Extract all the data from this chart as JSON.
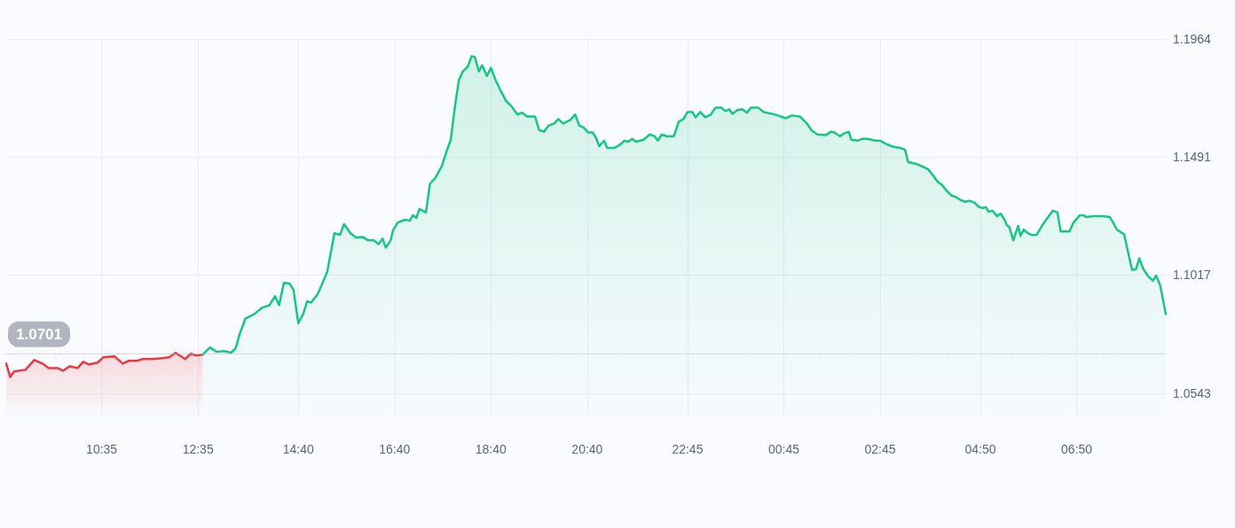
{
  "chart_data": {
    "type": "area",
    "xlim": [
      "--01-01T08:36",
      "--01-02T08:41"
    ],
    "ylim": [
      1.045,
      1.1964
    ],
    "xticks": [
      {
        "value": "--01-01T10:35",
        "label": "10:35"
      },
      {
        "value": "--01-01T12:35",
        "label": "12:35"
      },
      {
        "value": "--01-01T14:40",
        "label": "14:40"
      },
      {
        "value": "--01-01T16:40",
        "label": "16:40"
      },
      {
        "value": "--01-01T18:40",
        "label": "18:40"
      },
      {
        "value": "--01-01T20:40",
        "label": "20:40"
      },
      {
        "value": "--01-01T22:45",
        "label": "22:45"
      },
      {
        "value": "--01-02T00:45",
        "label": "00:45"
      },
      {
        "value": "--01-02T02:45",
        "label": "02:45"
      },
      {
        "value": "--01-02T04:50",
        "label": "04:50"
      },
      {
        "value": "--01-02T06:50",
        "label": "06:50"
      }
    ],
    "yticks": [
      1.0543,
      1.1017,
      1.1491,
      1.1964
    ],
    "grid": true,
    "marker": "none",
    "line_style": "solid",
    "ref_lines": [
      {
        "axis": "y",
        "value": 1.0701,
        "label": "1.0701",
        "color": "#b8bcc6",
        "line_style": "dotted"
      }
    ],
    "series": [
      {
        "color": "#ea3943",
        "x": [
          "--01-01T08:36",
          "--01-01T08:41",
          "--01-01T08:46",
          "--01-01T09:00",
          "--01-01T09:11",
          "--01-01T09:21",
          "--01-01T09:29",
          "--01-01T09:40",
          "--01-01T09:47",
          "--01-01T09:55",
          "--01-01T10:05",
          "--01-01T10:12",
          "--01-01T10:19",
          "--01-01T10:30",
          "--01-01T10:37",
          "--01-01T10:51",
          "--01-01T11:01",
          "--01-01T11:09",
          "--01-01T11:19",
          "--01-01T11:26",
          "--01-01T11:38",
          "--01-01T11:51",
          "--01-01T11:59",
          "--01-01T12:07",
          "--01-01T12:19",
          "--01-01T12:26",
          "--01-01T12:33",
          "--01-01T12:41"
        ],
        "values": [
          1.0662,
          1.0608,
          1.063,
          1.0637,
          1.0676,
          1.0662,
          1.0644,
          1.0644,
          1.0633,
          1.0651,
          1.0644,
          1.0669,
          1.0658,
          1.0666,
          1.0687,
          1.0691,
          1.0662,
          1.0673,
          1.0673,
          1.068,
          1.068,
          1.0684,
          1.0687,
          1.0705,
          1.068,
          1.0702,
          1.0694,
          1.0698
        ]
      },
      {
        "color": "#16c784",
        "x": [
          "--01-01T12:41",
          "--01-01T12:50",
          "--01-01T12:58",
          "--01-01T13:08",
          "--01-01T13:16",
          "--01-01T13:22",
          "--01-01T13:27",
          "--01-01T13:34",
          "--01-01T13:45",
          "--01-01T13:55",
          "--01-01T14:04",
          "--01-01T14:11",
          "--01-01T14:16",
          "--01-01T14:22",
          "--01-01T14:29",
          "--01-01T14:34",
          "--01-01T14:40",
          "--01-01T14:46",
          "--01-01T14:51",
          "--01-01T14:56",
          "--01-01T15:04",
          "--01-01T15:09",
          "--01-01T15:16",
          "--01-01T15:25",
          "--01-01T15:32",
          "--01-01T15:37",
          "--01-01T15:45",
          "--01-01T15:52",
          "--01-01T16:00",
          "--01-01T16:07",
          "--01-01T16:14",
          "--01-01T16:20",
          "--01-01T16:25",
          "--01-01T16:29",
          "--01-01T16:35",
          "--01-01T16:38",
          "--01-01T16:44",
          "--01-01T16:53",
          "--01-01T16:59",
          "--01-01T17:03",
          "--01-01T17:07",
          "--01-01T17:11",
          "--01-01T17:19",
          "--01-01T17:24",
          "--01-01T17:31",
          "--01-01T17:39",
          "--01-01T17:45",
          "--01-01T17:50",
          "--01-01T17:55",
          "--01-01T18:00",
          "--01-01T18:05",
          "--01-01T18:11",
          "--01-01T18:16",
          "--01-01T18:20",
          "--01-01T18:25",
          "--01-01T18:29",
          "--01-01T18:35",
          "--01-01T18:40",
          "--01-01T18:46",
          "--01-01T18:53",
          "--01-01T18:59",
          "--01-01T19:05",
          "--01-01T19:13",
          "--01-01T19:19",
          "--01-01T19:25",
          "--01-01T19:35",
          "--01-01T19:40",
          "--01-01T19:46",
          "--01-01T19:52",
          "--01-01T19:59",
          "--01-01T20:04",
          "--01-01T20:10",
          "--01-01T20:19",
          "--01-01T20:25",
          "--01-01T20:30",
          "--01-01T20:36",
          "--01-01T20:41",
          "--01-01T20:47",
          "--01-01T20:51",
          "--01-01T20:55",
          "--01-01T21:01",
          "--01-01T21:05",
          "--01-01T21:14",
          "--01-01T21:18",
          "--01-01T21:23",
          "--01-01T21:26",
          "--01-01T21:31",
          "--01-01T21:36",
          "--01-01T21:41",
          "--01-01T21:50",
          "--01-01T21:58",
          "--01-01T22:04",
          "--01-01T22:08",
          "--01-01T22:13",
          "--01-01T22:19",
          "--01-01T22:28",
          "--01-01T22:34",
          "--01-01T22:40",
          "--01-01T22:45",
          "--01-01T22:51",
          "--01-01T22:55",
          "--01-01T23:01",
          "--01-01T23:07",
          "--01-01T23:14",
          "--01-01T23:20",
          "--01-01T23:27",
          "--01-01T23:32",
          "--01-01T23:37",
          "--01-01T23:41",
          "--01-01T23:47",
          "--01-01T23:53",
          "--01-01T23:59",
          "--01-02T00:04",
          "--01-02T00:13",
          "--01-02T00:20",
          "--01-02T00:30",
          "--01-02T00:38",
          "--01-02T00:47",
          "--01-02T00:55",
          "--01-02T01:05",
          "--01-02T01:13",
          "--01-02T01:20",
          "--01-02T01:27",
          "--01-02T01:37",
          "--01-02T01:44",
          "--01-02T01:48",
          "--01-02T01:55",
          "--01-02T02:00",
          "--01-02T02:06",
          "--01-02T02:09",
          "--01-02T02:17",
          "--01-02T02:22",
          "--01-02T02:29",
          "--01-02T02:39",
          "--01-02T02:45",
          "--01-02T02:53",
          "--01-02T03:02",
          "--01-02T03:10",
          "--01-02T03:16",
          "--01-02T03:20",
          "--01-02T03:31",
          "--01-02T03:38",
          "--01-02T03:45",
          "--01-02T03:52",
          "--01-02T03:57",
          "--01-02T04:02",
          "--01-02T04:07",
          "--01-02T04:14",
          "--01-02T04:20",
          "--01-02T04:25",
          "--01-02T04:31",
          "--01-02T04:36",
          "--01-02T04:43",
          "--01-02T04:47",
          "--01-02T04:52",
          "--01-02T04:57",
          "--01-02T05:00",
          "--01-02T05:05",
          "--01-02T05:11",
          "--01-02T05:15",
          "--01-02T05:20",
          "--01-02T05:23",
          "--01-02T05:26",
          "--01-02T05:31",
          "--01-02T05:34",
          "--01-02T05:37",
          "--01-02T05:40",
          "--01-02T05:44",
          "--01-02T05:49",
          "--01-02T05:54",
          "--01-02T06:00",
          "--01-02T06:08",
          "--01-02T06:16",
          "--01-02T06:20",
          "--01-02T06:26",
          "--01-02T06:30",
          "--01-02T06:37",
          "--01-02T06:41",
          "--01-02T06:46",
          "--01-02T06:54",
          "--01-02T06:58",
          "--01-02T07:02",
          "--01-02T07:11",
          "--01-02T07:23",
          "--01-02T07:31",
          "--01-02T07:36",
          "--01-02T07:40",
          "--01-02T07:49",
          "--01-02T07:59",
          "--01-02T08:04",
          "--01-02T08:08",
          "--01-02T08:13",
          "--01-02T08:19",
          "--01-02T08:25",
          "--01-02T08:29",
          "--01-02T08:34",
          "--01-02T08:41"
        ],
        "values": [
          1.0698,
          1.0727,
          1.0709,
          1.0712,
          1.0705,
          1.0723,
          1.0781,
          1.0842,
          1.086,
          1.0886,
          1.0896,
          1.0932,
          1.0896,
          1.0986,
          1.0983,
          1.0958,
          1.0824,
          1.086,
          1.0911,
          1.0907,
          1.094,
          1.0976,
          1.103,
          1.1185,
          1.1178,
          1.1221,
          1.1185,
          1.1167,
          1.117,
          1.1156,
          1.1156,
          1.1141,
          1.1163,
          1.1127,
          1.1156,
          1.1196,
          1.1228,
          1.1239,
          1.1235,
          1.1257,
          1.1246,
          1.1282,
          1.1268,
          1.1383,
          1.1408,
          1.1455,
          1.1516,
          1.156,
          1.1689,
          1.1798,
          1.1834,
          1.1852,
          1.1895,
          1.1891,
          1.1834,
          1.1859,
          1.1816,
          1.1848,
          1.1798,
          1.1751,
          1.1715,
          1.1697,
          1.1661,
          1.1668,
          1.1653,
          1.1653,
          1.1599,
          1.1592,
          1.1617,
          1.1625,
          1.1643,
          1.1625,
          1.1639,
          1.1661,
          1.1617,
          1.1607,
          1.1589,
          1.1589,
          1.1567,
          1.1534,
          1.1556,
          1.1527,
          1.1527,
          1.1534,
          1.1545,
          1.1556,
          1.1552,
          1.1563,
          1.1552,
          1.156,
          1.1581,
          1.1574,
          1.1556,
          1.1581,
          1.1574,
          1.1574,
          1.1632,
          1.1643,
          1.1671,
          1.1671,
          1.165,
          1.1671,
          1.165,
          1.1661,
          1.1689,
          1.1689,
          1.1675,
          1.1682,
          1.1664,
          1.1679,
          1.1682,
          1.1668,
          1.1689,
          1.1689,
          1.1671,
          1.1664,
          1.1657,
          1.1646,
          1.1657,
          1.1653,
          1.1628,
          1.1596,
          1.1581,
          1.1578,
          1.1592,
          1.1589,
          1.1574,
          1.1585,
          1.1592,
          1.156,
          1.1556,
          1.1563,
          1.1563,
          1.1556,
          1.1556,
          1.1542,
          1.1531,
          1.1527,
          1.152,
          1.147,
          1.1462,
          1.1452,
          1.1441,
          1.1412,
          1.139,
          1.1379,
          1.1358,
          1.1336,
          1.1329,
          1.1318,
          1.1311,
          1.1315,
          1.1307,
          1.1293,
          1.1286,
          1.1289,
          1.1271,
          1.1275,
          1.1253,
          1.1264,
          1.1239,
          1.1217,
          1.121,
          1.1156,
          1.1185,
          1.1214,
          1.1174,
          1.1199,
          1.1185,
          1.1178,
          1.1178,
          1.1221,
          1.1257,
          1.1275,
          1.1268,
          1.1192,
          1.1192,
          1.1192,
          1.1228,
          1.1257,
          1.1257,
          1.125,
          1.1253,
          1.1253,
          1.125,
          1.1224,
          1.1199,
          1.1181,
          1.1037,
          1.1041,
          1.1084,
          1.1041,
          1.1012,
          1.0994,
          1.1015,
          1.0976,
          1.086
        ]
      }
    ]
  }
}
